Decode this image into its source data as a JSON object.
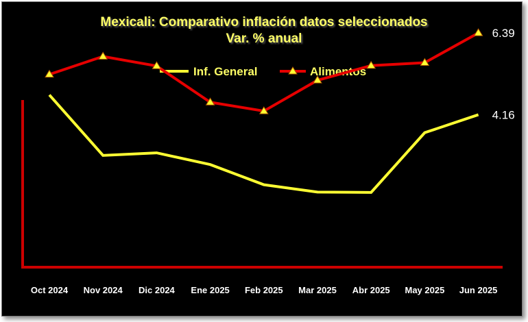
{
  "chart_data": {
    "type": "line",
    "title": "Mexicali: Comparativo inflación datos seleccionados",
    "subtitle": "Var. % anual",
    "categories": [
      "Oct 2024",
      "Nov 2024",
      "Dic 2024",
      "Ene 2025",
      "Feb 2025",
      "Mar 2025",
      "Abr 2025",
      "May 2025",
      "Jun 2025"
    ],
    "series": [
      {
        "name": "Inf. General",
        "color": "#ffff33",
        "marker": "none",
        "values": [
          4.7,
          3.05,
          3.12,
          2.8,
          2.25,
          2.05,
          2.04,
          3.67,
          4.16
        ],
        "end_label": "4.16"
      },
      {
        "name": "Alimentos",
        "color": "#e60000",
        "marker": "triangle-yellow",
        "values": [
          5.26,
          5.75,
          5.49,
          4.5,
          4.26,
          5.1,
          5.5,
          5.58,
          6.39
        ],
        "end_label": "6.39"
      }
    ],
    "ylim": [
      0,
      7
    ],
    "grid": false,
    "legend_position": "top-center",
    "axis_color": "#cc0000",
    "background": "#000000"
  }
}
